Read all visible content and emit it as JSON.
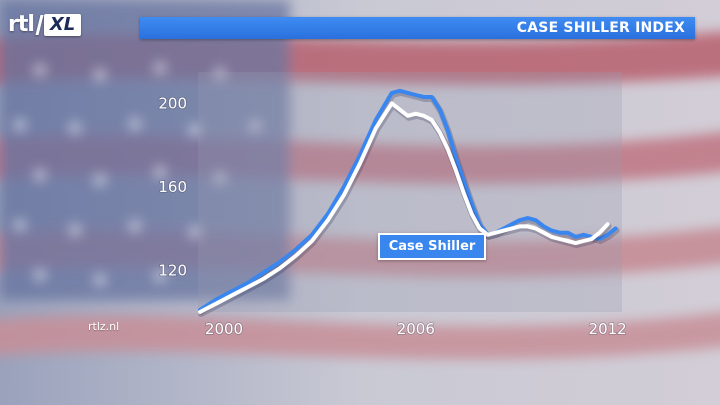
{
  "header": {
    "logo_text": "rtl",
    "logo_badge": "XL",
    "title": "CASE SHILLER INDEX"
  },
  "footer": {
    "source": "rtlz.nl"
  },
  "colors": {
    "title_bar": "#2f7ae8",
    "line_primary": "#3a86ef",
    "line_secondary": "#ffffff",
    "legend_box": "#3a86ef"
  },
  "chart_data": {
    "type": "line",
    "title": "CASE SHILLER INDEX",
    "xlabel": "",
    "ylabel": "",
    "xlim": [
      2000,
      2013.2
    ],
    "ylim": [
      100,
      215
    ],
    "x_ticks": [
      2000,
      2006,
      2012
    ],
    "y_ticks": [
      120,
      160,
      200
    ],
    "grid": false,
    "legend": "center",
    "legend_label": "Case Shiller",
    "series": [
      {
        "name": "Case Shiller",
        "x": [
          2000,
          2000.5,
          2001,
          2001.5,
          2002,
          2002.5,
          2003,
          2003.5,
          2004,
          2004.5,
          2005,
          2005.5,
          2006,
          2006.25,
          2006.5,
          2006.75,
          2007,
          2007.25,
          2007.5,
          2007.75,
          2008,
          2008.25,
          2008.5,
          2008.75,
          2009,
          2009.25,
          2009.5,
          2009.75,
          2010,
          2010.25,
          2010.5,
          2010.75,
          2011,
          2011.25,
          2011.5,
          2011.75,
          2012,
          2012.25,
          2012.5,
          2012.75,
          2013
        ],
        "y": [
          101,
          106,
          110,
          114,
          119,
          124,
          130,
          137,
          147,
          160,
          175,
          192,
          205,
          206,
          205,
          204,
          203,
          203,
          197,
          187,
          174,
          163,
          152,
          142,
          137,
          138,
          140,
          142,
          144,
          145,
          144,
          141,
          139,
          138,
          138,
          136,
          137,
          136,
          135,
          137,
          140
        ]
      },
      {
        "name": "",
        "x": [
          2000,
          2000.5,
          2001,
          2001.5,
          2002,
          2002.5,
          2003,
          2003.5,
          2004,
          2004.5,
          2005,
          2005.5,
          2006,
          2006.25,
          2006.5,
          2006.75,
          2007,
          2007.25,
          2007.5,
          2007.75,
          2008,
          2008.25,
          2008.5,
          2008.75,
          2009,
          2009.25,
          2009.5,
          2009.75,
          2010,
          2010.25,
          2010.5,
          2010.75,
          2011,
          2011.25,
          2011.5,
          2011.75,
          2012,
          2012.25,
          2012.5,
          2012.75
        ],
        "y": [
          100,
          104,
          108,
          112,
          116,
          121,
          127,
          134,
          144,
          156,
          171,
          188,
          200,
          197,
          194,
          195,
          194,
          192,
          186,
          178,
          168,
          157,
          147,
          140,
          137,
          138,
          139,
          140,
          141,
          141,
          140,
          138,
          136,
          135,
          134,
          133,
          134,
          135,
          138,
          142
        ]
      }
    ]
  }
}
